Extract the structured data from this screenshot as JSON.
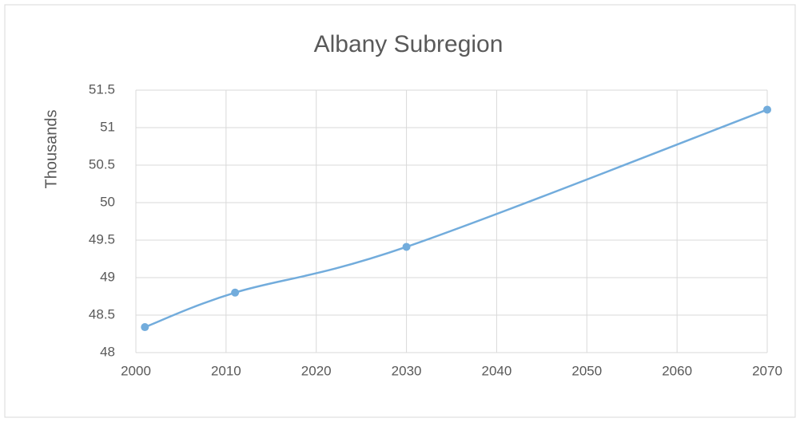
{
  "chart_data": {
    "type": "line",
    "title": "Albany Subregion",
    "y_label": "Thousands",
    "x": [
      2001,
      2011,
      2030,
      2070
    ],
    "series": [
      {
        "name": "Albany Subregion",
        "color": "#72acdc",
        "values": [
          48.34,
          48.8,
          49.41,
          51.24
        ]
      }
    ],
    "xlim": [
      2000,
      2070
    ],
    "xticks": [
      2000,
      2010,
      2020,
      2030,
      2040,
      2050,
      2060,
      2070
    ],
    "ylim": [
      48,
      51.5
    ],
    "yticks": [
      48,
      48.5,
      49,
      49.5,
      50,
      50.5,
      51,
      51.5
    ],
    "grid": true,
    "smooth": true
  }
}
